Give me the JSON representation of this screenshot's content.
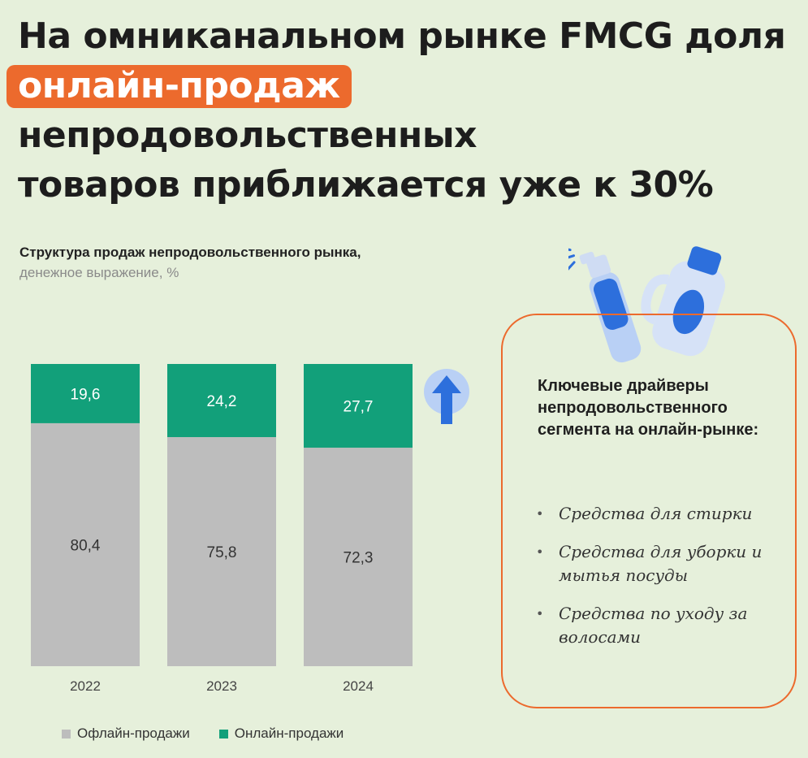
{
  "headline": {
    "line1": "На омниканальном рынке FMCG доля",
    "highlight": "онлайн-продаж",
    "line2_rest": "непродовольственных",
    "line3": "товаров приближается уже к 30%"
  },
  "chart_title": {
    "main": "Структура продаж непродовольственного рынка,",
    "sub": "денежное выражение, %"
  },
  "colors": {
    "background": "#e6f0db",
    "accent": "#ec6a2d",
    "offline": "#bdbdbd",
    "online": "#12a07a",
    "arrow": "#2d6fdc",
    "arrow_circle": "#b9d0f5"
  },
  "chart_data": {
    "type": "bar",
    "stacked": true,
    "unit": "%",
    "categories": [
      "2022",
      "2023",
      "2024"
    ],
    "series": [
      {
        "name": "Офлайн-продажи",
        "values": [
          80.4,
          75.8,
          72.3
        ],
        "labels": [
          "80,4",
          "75,8",
          "72,3"
        ]
      },
      {
        "name": "Онлайн-продажи",
        "values": [
          19.6,
          24.2,
          27.7
        ],
        "labels": [
          "19,6",
          "24,2",
          "27,7"
        ]
      }
    ],
    "ylim": [
      0,
      100
    ],
    "grid": false,
    "legend": "bottom-left",
    "annotation_icon": "up-arrow-icon"
  },
  "drivers": {
    "title": "Ключевые драйверы непродовольственного сегмента на онлайн-рынке:",
    "items": [
      "Средства для стирки",
      "Средства для уборки и мытья посуды",
      "Средства по уходу за волосами"
    ]
  },
  "illustration": {
    "icons": [
      "spray-bottle-icon",
      "detergent-bottle-icon"
    ]
  }
}
